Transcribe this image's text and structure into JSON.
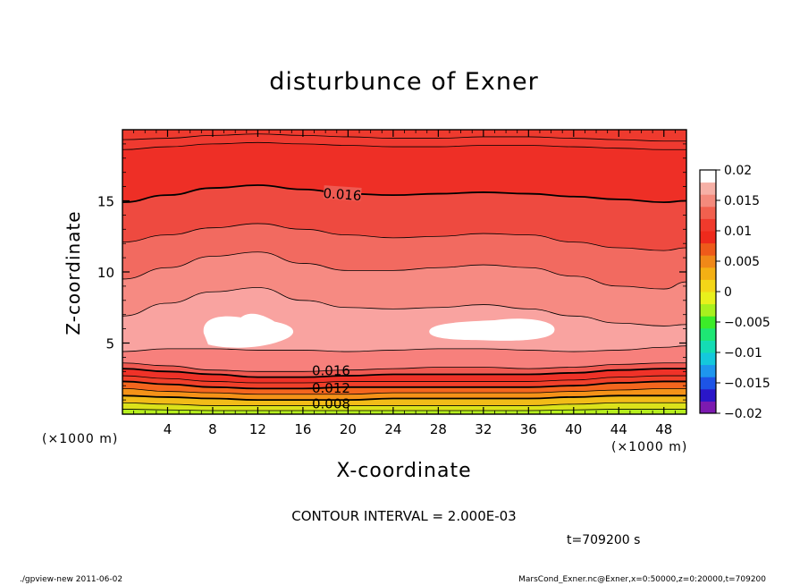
{
  "chart_data": {
    "type": "heatmap",
    "subtype": "filled-contour",
    "title": "disturbunce of Exner",
    "xlabel": "X-coordinate",
    "ylabel": "Z-coordinate",
    "x_unit": "(×1000 m)",
    "y_unit": "(×1000 m)",
    "xlim": [
      0,
      50
    ],
    "ylim": [
      0,
      20
    ],
    "x_ticks": [
      4,
      8,
      12,
      16,
      20,
      24,
      28,
      32,
      36,
      40,
      44,
      48
    ],
    "y_ticks": [
      5,
      10,
      15
    ],
    "contour_interval_text": "CONTOUR INTERVAL = 2.000E-03",
    "time_text": "t=709200 s",
    "contour_labels": [
      {
        "text": "0.016",
        "x": 19.5,
        "y": 15.5
      },
      {
        "text": "0.016",
        "x": 18.5,
        "y": 3.1
      },
      {
        "text": "0.012",
        "x": 18.5,
        "y": 1.9
      },
      {
        "text": "0.008",
        "x": 18.5,
        "y": 0.8
      }
    ],
    "colorbar": {
      "levels": [
        "0.02",
        "0.015",
        "0.01",
        "0.005",
        "0",
        "−0.005",
        "−0.01",
        "−0.015",
        "−0.02"
      ],
      "min": -0.02,
      "max": 0.02,
      "colors": [
        "#7c1ab0",
        "#2a16c8",
        "#1d54e6",
        "#1e96ee",
        "#14c8dc",
        "#14dcb4",
        "#1ee674",
        "#3cec28",
        "#a8f01e",
        "#e8f01c",
        "#f4d618",
        "#f4b014",
        "#f08818",
        "#ee5a1a",
        "#ee2a1c",
        "#f03a2c",
        "#f2604e",
        "#f48a7c",
        "#f6b0a6",
        "#ffffff"
      ]
    },
    "fill_palette": {
      "layer_0.022": "#ffffff",
      "layer_0.020": "#f9a0a0",
      "layer_0.018": "#f37b78",
      "layer_0.016": "#ee5754",
      "layer_0.014": "#ef342c",
      "layer_0.012": "#f25028",
      "layer_0.010": "#f6821c",
      "layer_0.008": "#f3b016",
      "layer_0.006": "#e8d818",
      "layer_0.004": "#c0ee1c"
    }
  },
  "footer": {
    "left": "./gpview-new   2011-06-02",
    "right": "MarsCond_Exner.nc@Exner,x=0:50000,z=0:20000,t=709200"
  }
}
